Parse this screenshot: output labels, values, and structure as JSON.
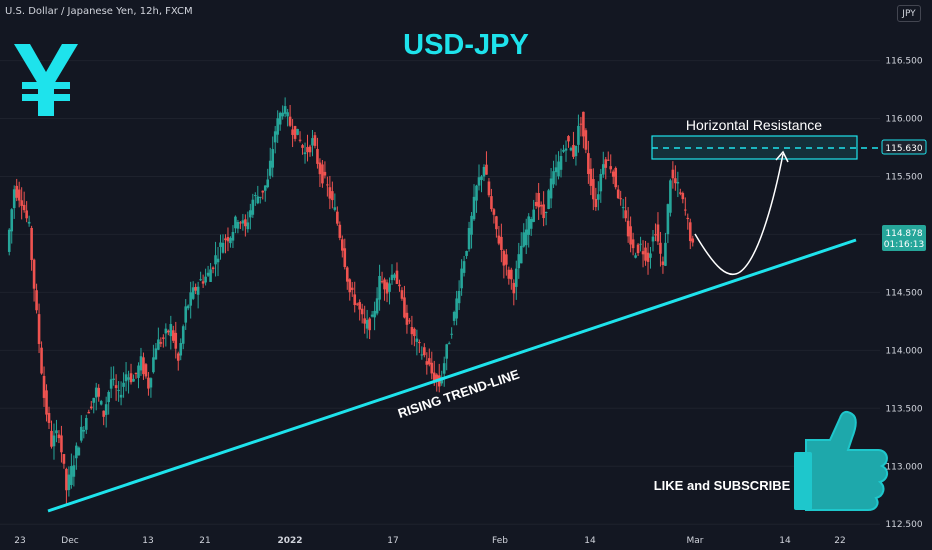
{
  "header": {
    "symbol": "U.S. Dollar / Japanese Yen, 12h, FXCM",
    "currency_button": "JPY"
  },
  "colors": {
    "background": "#131722",
    "up": "#26a69a",
    "down": "#ef5350",
    "accent": "#1ee3ec",
    "grid": "#1e222d",
    "text": "#d1d4dc"
  },
  "chart_data": {
    "type": "candlestick",
    "title": "USD-JPY",
    "ylim": [
      112.45,
      116.85
    ],
    "y_ticks": [
      112.5,
      113.0,
      113.5,
      114.0,
      114.5,
      115.0,
      115.5,
      116.0,
      116.5
    ],
    "y_tick_labels": [
      "112.500",
      "113.000",
      "113.500",
      "114.000",
      "114.500",
      "115.000",
      "115.500",
      "116.000",
      "116.500"
    ],
    "x_tick_labels": [
      "23",
      "Dec",
      "13",
      "21",
      "2022",
      "17",
      "Feb",
      "14",
      "Mar",
      "14",
      "22"
    ],
    "close_series": [
      114.85,
      115.4,
      115.3,
      115.05,
      114.3,
      113.6,
      113.2,
      113.3,
      112.8,
      113.05,
      113.3,
      113.5,
      113.65,
      113.45,
      113.75,
      113.6,
      113.8,
      113.75,
      113.9,
      113.7,
      114.05,
      114.1,
      114.2,
      113.9,
      114.35,
      114.5,
      114.6,
      114.65,
      114.8,
      114.95,
      115.0,
      115.15,
      115.05,
      115.3,
      115.35,
      115.45,
      115.9,
      116.1,
      115.95,
      115.85,
      115.7,
      115.8,
      115.55,
      115.4,
      115.2,
      114.9,
      114.5,
      114.4,
      114.2,
      114.25,
      114.6,
      114.55,
      114.7,
      114.4,
      114.2,
      114.05,
      113.95,
      113.8,
      113.7,
      114.0,
      114.3,
      114.7,
      115.0,
      115.4,
      115.6,
      115.2,
      114.95,
      114.7,
      114.55,
      114.9,
      115.1,
      115.3,
      115.15,
      115.45,
      115.6,
      115.8,
      115.7,
      116.0,
      115.55,
      115.25,
      115.65,
      115.6,
      115.35,
      115.1,
      114.85,
      114.9,
      114.8,
      115.05,
      114.7,
      115.5,
      115.4,
      115.2,
      114.88
    ],
    "last_price": "114.878",
    "countdown": "01:16:13",
    "resistance_level": "115.630",
    "annotations": {
      "resistance": "Horizontal Resistance",
      "trendline": "RISING TREND-LINE",
      "cta": "LIKE and SUBSCRIBE"
    }
  }
}
